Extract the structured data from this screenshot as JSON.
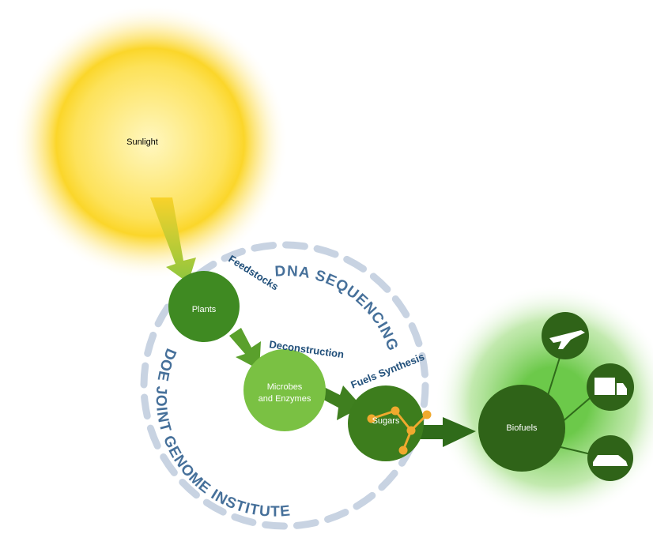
{
  "sun": {
    "label": "Sunlight"
  },
  "ring_labels": {
    "top": "DNA SEQUENCING",
    "bottom": "DOE JOINT GENOME INSTITUTE"
  },
  "stages": [
    "Feedstocks",
    "Deconstruction",
    "Fuels Synthesis"
  ],
  "nodes": [
    {
      "label": "Plants"
    },
    {
      "label_lines": [
        "Microbes",
        "and Enzymes"
      ]
    },
    {
      "label": "Sugars"
    },
    {
      "label": "Biofuels"
    }
  ]
}
